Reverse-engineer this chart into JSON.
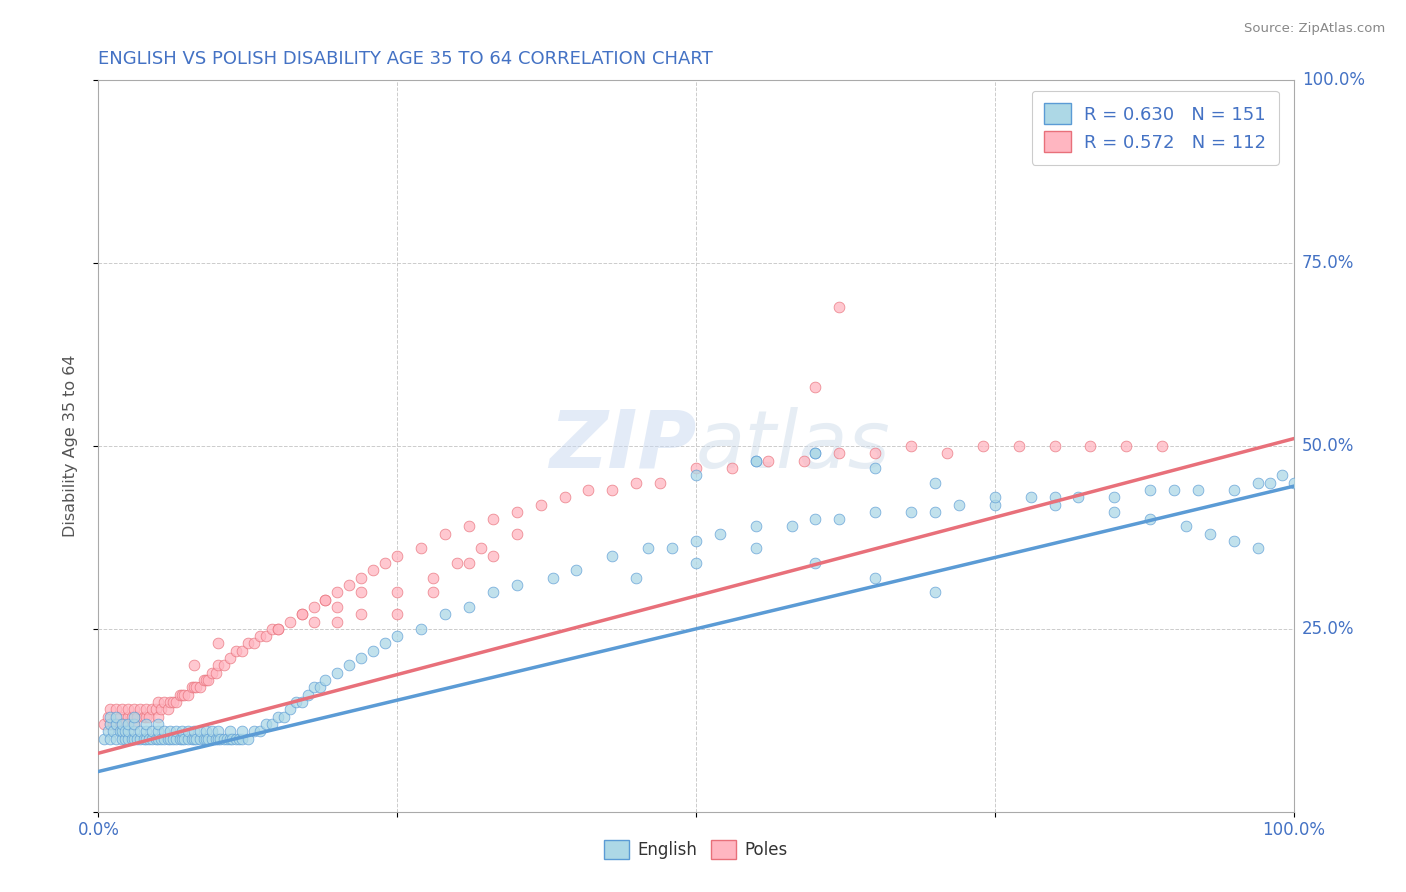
{
  "title": "ENGLISH VS POLISH DISABILITY AGE 35 TO 64 CORRELATION CHART",
  "source_text": "Source: ZipAtlas.com",
  "ylabel": "Disability Age 35 to 64",
  "xlim": [
    0.0,
    1.0
  ],
  "ylim": [
    0.0,
    1.0
  ],
  "english_R": 0.63,
  "english_N": 151,
  "polish_R": 0.572,
  "polish_N": 112,
  "english_color": "#ADD8E6",
  "polish_color": "#FFB6C1",
  "english_line_color": "#5B9BD5",
  "polish_line_color": "#E8707A",
  "title_color": "#4472C4",
  "legend_text_color": "#4472C4",
  "watermark_color": "#D0D8E8",
  "background_color": "#FFFFFF",
  "grid_color": "#CCCCCC",
  "english_line_intercept": 0.055,
  "english_line_slope": 0.39,
  "polish_line_intercept": 0.08,
  "polish_line_slope": 0.43,
  "english_scatter_x": [
    0.005,
    0.008,
    0.01,
    0.01,
    0.01,
    0.012,
    0.015,
    0.015,
    0.015,
    0.018,
    0.02,
    0.02,
    0.02,
    0.022,
    0.022,
    0.025,
    0.025,
    0.025,
    0.028,
    0.03,
    0.03,
    0.03,
    0.03,
    0.032,
    0.035,
    0.035,
    0.038,
    0.04,
    0.04,
    0.04,
    0.042,
    0.045,
    0.045,
    0.048,
    0.05,
    0.05,
    0.05,
    0.052,
    0.055,
    0.055,
    0.058,
    0.06,
    0.06,
    0.062,
    0.065,
    0.065,
    0.068,
    0.07,
    0.07,
    0.072,
    0.075,
    0.075,
    0.078,
    0.08,
    0.08,
    0.082,
    0.085,
    0.085,
    0.088,
    0.09,
    0.09,
    0.092,
    0.095,
    0.095,
    0.098,
    0.1,
    0.1,
    0.102,
    0.105,
    0.108,
    0.11,
    0.11,
    0.112,
    0.115,
    0.118,
    0.12,
    0.12,
    0.125,
    0.13,
    0.135,
    0.14,
    0.145,
    0.15,
    0.155,
    0.16,
    0.165,
    0.17,
    0.175,
    0.18,
    0.185,
    0.19,
    0.2,
    0.21,
    0.22,
    0.23,
    0.24,
    0.25,
    0.27,
    0.29,
    0.31,
    0.33,
    0.35,
    0.38,
    0.4,
    0.43,
    0.46,
    0.48,
    0.5,
    0.52,
    0.55,
    0.58,
    0.6,
    0.62,
    0.65,
    0.68,
    0.7,
    0.72,
    0.75,
    0.78,
    0.8,
    0.82,
    0.85,
    0.88,
    0.9,
    0.92,
    0.95,
    0.97,
    0.98,
    0.99,
    1.0,
    0.55,
    0.6,
    0.65,
    0.7,
    0.75,
    0.8,
    0.85,
    0.88,
    0.91,
    0.93,
    0.95,
    0.97,
    0.45,
    0.5,
    0.55,
    0.6,
    0.65,
    0.7,
    0.6,
    0.55,
    0.5
  ],
  "english_scatter_y": [
    0.1,
    0.11,
    0.1,
    0.12,
    0.13,
    0.11,
    0.1,
    0.12,
    0.13,
    0.11,
    0.1,
    0.11,
    0.12,
    0.1,
    0.11,
    0.1,
    0.11,
    0.12,
    0.1,
    0.1,
    0.11,
    0.12,
    0.13,
    0.1,
    0.1,
    0.11,
    0.1,
    0.1,
    0.11,
    0.12,
    0.1,
    0.1,
    0.11,
    0.1,
    0.1,
    0.11,
    0.12,
    0.1,
    0.1,
    0.11,
    0.1,
    0.1,
    0.11,
    0.1,
    0.1,
    0.11,
    0.1,
    0.1,
    0.11,
    0.1,
    0.1,
    0.11,
    0.1,
    0.1,
    0.11,
    0.1,
    0.1,
    0.11,
    0.1,
    0.1,
    0.11,
    0.1,
    0.1,
    0.11,
    0.1,
    0.1,
    0.11,
    0.1,
    0.1,
    0.1,
    0.1,
    0.11,
    0.1,
    0.1,
    0.1,
    0.1,
    0.11,
    0.1,
    0.11,
    0.11,
    0.12,
    0.12,
    0.13,
    0.13,
    0.14,
    0.15,
    0.15,
    0.16,
    0.17,
    0.17,
    0.18,
    0.19,
    0.2,
    0.21,
    0.22,
    0.23,
    0.24,
    0.25,
    0.27,
    0.28,
    0.3,
    0.31,
    0.32,
    0.33,
    0.35,
    0.36,
    0.36,
    0.37,
    0.38,
    0.39,
    0.39,
    0.4,
    0.4,
    0.41,
    0.41,
    0.41,
    0.42,
    0.42,
    0.43,
    0.43,
    0.43,
    0.43,
    0.44,
    0.44,
    0.44,
    0.44,
    0.45,
    0.45,
    0.46,
    0.45,
    0.48,
    0.49,
    0.47,
    0.45,
    0.43,
    0.42,
    0.41,
    0.4,
    0.39,
    0.38,
    0.37,
    0.36,
    0.32,
    0.34,
    0.36,
    0.34,
    0.32,
    0.3,
    0.49,
    0.48,
    0.46
  ],
  "polish_scatter_x": [
    0.005,
    0.008,
    0.01,
    0.01,
    0.012,
    0.015,
    0.015,
    0.018,
    0.02,
    0.02,
    0.022,
    0.025,
    0.025,
    0.028,
    0.03,
    0.03,
    0.032,
    0.035,
    0.038,
    0.04,
    0.04,
    0.042,
    0.045,
    0.048,
    0.05,
    0.05,
    0.052,
    0.055,
    0.058,
    0.06,
    0.062,
    0.065,
    0.068,
    0.07,
    0.072,
    0.075,
    0.078,
    0.08,
    0.082,
    0.085,
    0.088,
    0.09,
    0.092,
    0.095,
    0.098,
    0.1,
    0.105,
    0.11,
    0.115,
    0.12,
    0.125,
    0.13,
    0.135,
    0.14,
    0.145,
    0.15,
    0.16,
    0.17,
    0.18,
    0.19,
    0.2,
    0.21,
    0.22,
    0.23,
    0.24,
    0.25,
    0.27,
    0.29,
    0.31,
    0.33,
    0.35,
    0.37,
    0.39,
    0.41,
    0.43,
    0.45,
    0.47,
    0.5,
    0.53,
    0.56,
    0.59,
    0.62,
    0.65,
    0.68,
    0.71,
    0.74,
    0.77,
    0.8,
    0.83,
    0.86,
    0.89,
    0.62,
    0.6,
    0.25,
    0.28,
    0.31,
    0.33,
    0.2,
    0.22,
    0.25,
    0.28,
    0.3,
    0.32,
    0.35,
    0.18,
    0.2,
    0.22,
    0.15,
    0.17,
    0.19,
    0.08,
    0.1
  ],
  "polish_scatter_y": [
    0.12,
    0.13,
    0.12,
    0.14,
    0.12,
    0.12,
    0.14,
    0.13,
    0.12,
    0.14,
    0.12,
    0.13,
    0.14,
    0.13,
    0.12,
    0.14,
    0.13,
    0.14,
    0.13,
    0.13,
    0.14,
    0.13,
    0.14,
    0.14,
    0.13,
    0.15,
    0.14,
    0.15,
    0.14,
    0.15,
    0.15,
    0.15,
    0.16,
    0.16,
    0.16,
    0.16,
    0.17,
    0.17,
    0.17,
    0.17,
    0.18,
    0.18,
    0.18,
    0.19,
    0.19,
    0.2,
    0.2,
    0.21,
    0.22,
    0.22,
    0.23,
    0.23,
    0.24,
    0.24,
    0.25,
    0.25,
    0.26,
    0.27,
    0.28,
    0.29,
    0.3,
    0.31,
    0.32,
    0.33,
    0.34,
    0.35,
    0.36,
    0.38,
    0.39,
    0.4,
    0.41,
    0.42,
    0.43,
    0.44,
    0.44,
    0.45,
    0.45,
    0.47,
    0.47,
    0.48,
    0.48,
    0.49,
    0.49,
    0.5,
    0.49,
    0.5,
    0.5,
    0.5,
    0.5,
    0.5,
    0.5,
    0.69,
    0.58,
    0.27,
    0.3,
    0.34,
    0.35,
    0.26,
    0.27,
    0.3,
    0.32,
    0.34,
    0.36,
    0.38,
    0.26,
    0.28,
    0.3,
    0.25,
    0.27,
    0.29,
    0.2,
    0.23
  ]
}
